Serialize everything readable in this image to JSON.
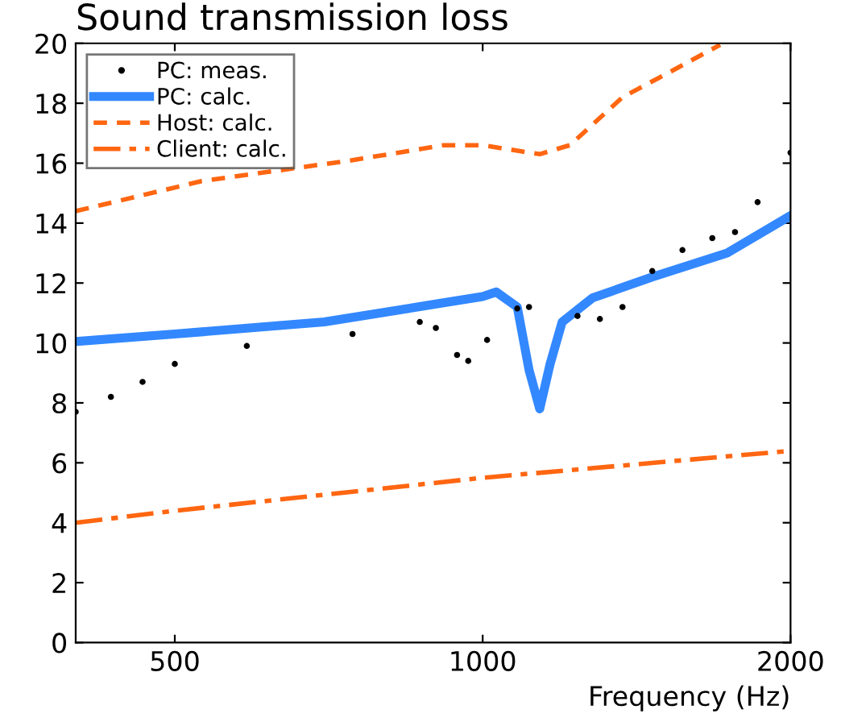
{
  "chart_data": {
    "type": "line",
    "title": "Sound transmission loss",
    "xlabel": "Frequency (Hz)",
    "log": "x",
    "xlim": [
      400,
      2000
    ],
    "xticks": [
      500,
      1000,
      2000
    ],
    "ylim": [
      0,
      20
    ],
    "yticks": [
      0,
      2,
      4,
      6,
      8,
      10,
      12,
      14,
      16,
      18,
      20
    ],
    "grid": false,
    "legend": "top left",
    "series": [
      {
        "name": "PC: meas.",
        "type": "scatter",
        "marker": "circle",
        "color": "#000000",
        "x": [
          400,
          433,
          465,
          500,
          588,
          746,
          868,
          900,
          944,
          968,
          1010,
          1081,
          1110,
          1238,
          1302,
          1370,
          1465,
          1568,
          1677,
          1765,
          1857,
          2000
        ],
        "values": [
          7.7,
          8.2,
          8.7,
          9.3,
          9.9,
          10.3,
          10.7,
          10.5,
          9.6,
          9.4,
          10.1,
          11.15,
          11.2,
          10.9,
          10.8,
          11.2,
          12.4,
          13.1,
          13.5,
          13.7,
          14.7,
          16.35
        ]
      },
      {
        "name": "PC: calc.",
        "line_style": "solid",
        "color": "#3388ff",
        "x": [
          400,
          500,
          700,
          900,
          1000,
          1031,
          1081,
          1110,
          1137,
          1164,
          1196,
          1280,
          1465,
          1734,
          2000
        ],
        "values": [
          10.05,
          10.3,
          10.7,
          11.3,
          11.55,
          11.7,
          11.2,
          9.1,
          7.8,
          9.3,
          10.7,
          11.5,
          12.2,
          13.0,
          14.25
        ]
      },
      {
        "name": "Host: calc.",
        "line_style": "dashed",
        "color": "#ff6611",
        "x": [
          400,
          531,
          746,
          916,
          1000,
          1137,
          1217,
          1370,
          1516,
          1707
        ],
        "values": [
          14.4,
          15.4,
          16.1,
          16.6,
          16.6,
          16.3,
          16.6,
          18.2,
          19.0,
          19.95
        ]
      },
      {
        "name": "Client: calc.",
        "line_style": "dashdot",
        "color": "#ff6611",
        "x": [
          400,
          500,
          1000,
          2000
        ],
        "values": [
          4.0,
          4.4,
          5.5,
          6.4
        ]
      }
    ]
  }
}
